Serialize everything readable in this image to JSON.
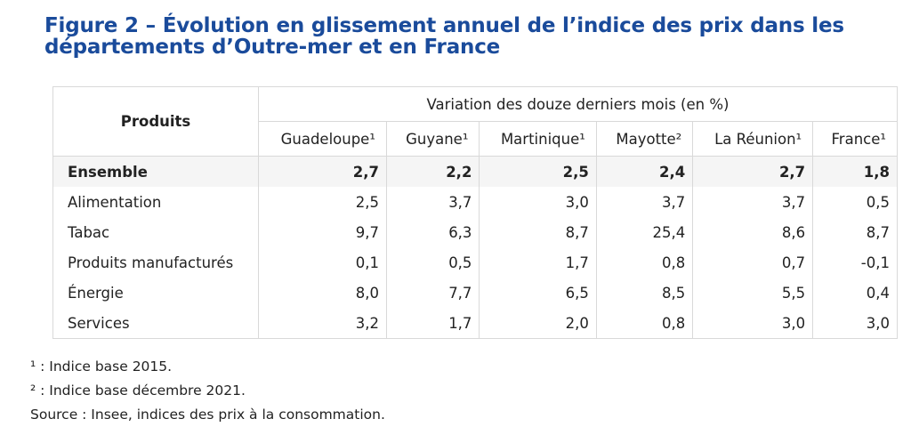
{
  "title": {
    "line1": "Figure 2 – Évolution en glissement annuel de l’indice des prix dans les",
    "line2": "départements d’Outre-mer et en France"
  },
  "table": {
    "products_header": "Produits",
    "variation_header": "Variation des douze derniers mois (en %)",
    "columns": [
      "Guadeloupe¹",
      "Guyane¹",
      "Martinique¹",
      "Mayotte²",
      "La Réunion¹",
      "France¹"
    ],
    "rows": [
      {
        "label": "Ensemble",
        "values": [
          "2,7",
          "2,2",
          "2,5",
          "2,4",
          "2,7",
          "1,8"
        ]
      },
      {
        "label": "Alimentation",
        "values": [
          "2,5",
          "3,7",
          "3,0",
          "3,7",
          "3,7",
          "0,5"
        ]
      },
      {
        "label": "Tabac",
        "values": [
          "9,7",
          "6,3",
          "8,7",
          "25,4",
          "8,6",
          "8,7"
        ]
      },
      {
        "label": "Produits manufacturés",
        "values": [
          "0,1",
          "0,5",
          "1,7",
          "0,8",
          "0,7",
          "-0,1"
        ]
      },
      {
        "label": "Énergie",
        "values": [
          "8,0",
          "7,7",
          "6,5",
          "8,5",
          "5,5",
          "0,4"
        ]
      },
      {
        "label": "Services",
        "values": [
          "3,2",
          "1,7",
          "2,0",
          "0,8",
          "3,0",
          "3,0"
        ]
      }
    ]
  },
  "notes": {
    "note1": "¹ : Indice base 2015.",
    "note2": "² : Indice base décembre 2021.",
    "source": "Source : Insee, indices des prix à la consommation."
  },
  "colors": {
    "title": "#1a4b9b",
    "border": "#d9d9d9",
    "row_shade": "#f5f5f5"
  }
}
